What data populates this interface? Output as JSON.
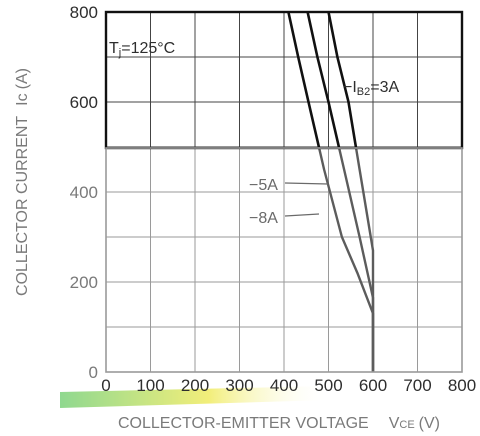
{
  "colors": {
    "curve_upper": "#111111",
    "curve_lower": "#5c5c5c",
    "frame": "#111111",
    "grid": "#444444",
    "grid_dim": "#9a9a9a",
    "tick_text": "#2e2e2e",
    "tick_text_dim": "#7a7a7a",
    "stripe_green": "#8fd88f",
    "stripe_yellow": "#f2ee7a"
  },
  "chart_data": {
    "type": "line",
    "xlabel_main": "COLLECTOR-EMITTER VOLTAGE",
    "xlabel_symbol": "V",
    "xlabel_symbol_sub": "CE",
    "xlabel_unit": "(V)",
    "ylabel_main": "COLLECTOR CURRENT",
    "ylabel_symbol": "Ic",
    "ylabel_unit": "(A)",
    "xlim": [
      0,
      800
    ],
    "ylim": [
      0,
      800
    ],
    "x_ticks": [
      "0",
      "100",
      "200",
      "300",
      "400",
      "500",
      "600",
      "700",
      "800"
    ],
    "y_ticks": [
      "0",
      "200",
      "400",
      "600",
      "800"
    ],
    "x_grid_step": 100,
    "y_grid_step": 100,
    "grid": true,
    "condition_label": {
      "prefix": "T",
      "sub": "j",
      "rest": "=125°C"
    },
    "series": [
      {
        "label_prefix": "−I",
        "label_sub": "B2",
        "label_rest": "=3A",
        "x": [
          500,
          520,
          545,
          570,
          600,
          600
        ],
        "y": [
          800,
          700,
          600,
          450,
          270,
          0
        ]
      },
      {
        "label": "−5A",
        "x": [
          453,
          475,
          500,
          535,
          570,
          600,
          600
        ],
        "y": [
          800,
          700,
          600,
          450,
          300,
          165,
          0
        ]
      },
      {
        "label": "−8A",
        "x": [
          410,
          432,
          455,
          490,
          530,
          565,
          600,
          600
        ],
        "y": [
          800,
          700,
          600,
          450,
          300,
          220,
          130,
          0
        ]
      }
    ]
  }
}
